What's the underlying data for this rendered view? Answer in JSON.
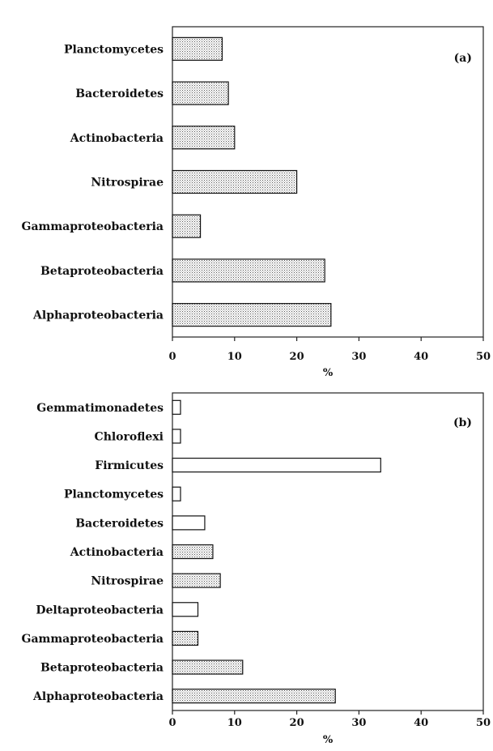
{
  "chart_data": [
    {
      "type": "bar",
      "orientation": "horizontal",
      "panel_label": "(a)",
      "categories": [
        "Planctomycetes",
        "Bacteroidetes",
        "Actinobacteria",
        "Nitrospirae",
        "Gammaproteobacteria",
        "Betaproteobacteria",
        "Alphaproteobacteria"
      ],
      "values": [
        8,
        9,
        10,
        20,
        4.5,
        24.5,
        25.5
      ],
      "xlabel": "%",
      "xlim": [
        0,
        50
      ],
      "xticks": [
        "0",
        "10",
        "20",
        "30",
        "40",
        "50"
      ],
      "fill_pattern": "dotted"
    },
    {
      "type": "bar",
      "orientation": "horizontal",
      "panel_label": "(b)",
      "categories": [
        "Gemmatimonadetes",
        "Chloroflexi",
        "Firmicutes",
        "Planctomycetes",
        "Bacteroidetes",
        "Actinobacteria",
        "Nitrospirae",
        "Deltaproteobacteria",
        "Gammaproteobacteria",
        "Betaproteobacteria",
        "Alphaproteobacteria"
      ],
      "values": [
        1.3,
        1.3,
        33.5,
        1.3,
        5.2,
        6.5,
        7.7,
        4.1,
        4.1,
        11.3,
        26.2
      ],
      "fills": [
        "plain",
        "plain",
        "plain",
        "plain",
        "plain",
        "dotted",
        "dotted",
        "plain",
        "dotted",
        "dotted",
        "dotted"
      ],
      "xlabel": "%",
      "xlim": [
        0,
        50
      ],
      "xticks": [
        "0",
        "10",
        "20",
        "30",
        "40",
        "50"
      ]
    }
  ]
}
